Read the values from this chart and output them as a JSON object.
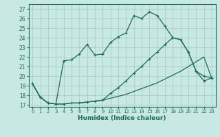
{
  "xlabel": "Humidex (Indice chaleur)",
  "ylabel": "",
  "xlim": [
    -0.5,
    23.5
  ],
  "ylim": [
    16.8,
    27.5
  ],
  "xticks": [
    0,
    1,
    2,
    3,
    4,
    5,
    6,
    7,
    8,
    9,
    10,
    11,
    12,
    13,
    14,
    15,
    16,
    17,
    18,
    19,
    20,
    21,
    22,
    23
  ],
  "yticks": [
    17,
    18,
    19,
    20,
    21,
    22,
    23,
    24,
    25,
    26,
    27
  ],
  "bg_color": "#c8e8e4",
  "grid_color": "#a8ccca",
  "line_color": "#1a6b5a",
  "line1_x": [
    0,
    1,
    2,
    3,
    4,
    5,
    6,
    7,
    8,
    9,
    10,
    11,
    12,
    13,
    14,
    15,
    16,
    17,
    18,
    19,
    20,
    21,
    22,
    23
  ],
  "line1_y": [
    19.2,
    17.8,
    17.2,
    17.1,
    17.1,
    17.2,
    17.2,
    17.3,
    17.4,
    17.5,
    17.7,
    17.9,
    18.1,
    18.4,
    18.7,
    19.0,
    19.3,
    19.7,
    20.1,
    20.5,
    21.0,
    21.5,
    22.0,
    19.8
  ],
  "line2_x": [
    0,
    1,
    2,
    3,
    4,
    5,
    6,
    7,
    8,
    9,
    10,
    11,
    12,
    13,
    14,
    15,
    16,
    17,
    18,
    19,
    20,
    21,
    22,
    23
  ],
  "line2_y": [
    19.2,
    17.8,
    17.2,
    17.1,
    21.6,
    21.7,
    22.3,
    23.3,
    22.2,
    22.3,
    23.5,
    24.1,
    24.5,
    26.3,
    26.0,
    26.7,
    26.3,
    25.2,
    24.0,
    23.8,
    22.5,
    20.5,
    19.5,
    19.8
  ],
  "line3_x": [
    0,
    1,
    2,
    3,
    4,
    5,
    6,
    7,
    8,
    9,
    10,
    11,
    12,
    13,
    14,
    15,
    16,
    17,
    18,
    19,
    20,
    21,
    22,
    23
  ],
  "line3_y": [
    19.2,
    17.8,
    17.2,
    17.1,
    17.1,
    17.2,
    17.2,
    17.3,
    17.4,
    17.5,
    18.2,
    18.8,
    19.5,
    20.3,
    21.0,
    21.8,
    22.5,
    23.3,
    24.0,
    23.8,
    22.5,
    20.5,
    20.0,
    19.8
  ]
}
